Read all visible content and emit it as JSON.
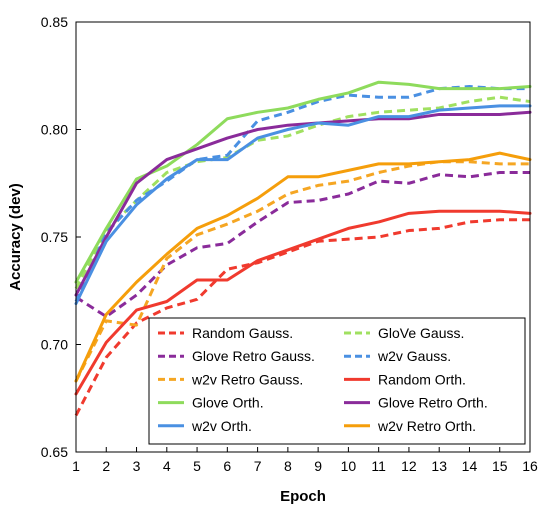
{
  "chart_data": {
    "type": "line",
    "xlabel": "Epoch",
    "ylabel": "Accuracy (dev)",
    "x": [
      1,
      2,
      3,
      4,
      5,
      6,
      7,
      8,
      9,
      10,
      11,
      12,
      13,
      14,
      15,
      16
    ],
    "xlim": [
      1,
      16
    ],
    "ylim": [
      0.65,
      0.85
    ],
    "x_ticks": [
      "1",
      "2",
      "3",
      "4",
      "5",
      "6",
      "7",
      "8",
      "9",
      "10",
      "11",
      "12",
      "13",
      "14",
      "15",
      "16"
    ],
    "y_ticks": [
      "0.65",
      "0.70",
      "0.75",
      "0.80",
      "0.85"
    ],
    "grid": false,
    "legend_position": "bottom-right",
    "series": [
      {
        "name": "Random Gauss.",
        "color": "#F03A2E",
        "dashed": true,
        "values": [
          0.667,
          0.694,
          0.71,
          0.717,
          0.721,
          0.735,
          0.738,
          0.743,
          0.748,
          0.749,
          0.75,
          0.753,
          0.754,
          0.757,
          0.758,
          0.758
        ]
      },
      {
        "name": "GloVe Gauss.",
        "color": "#A0E060",
        "dashed": true,
        "values": [
          0.726,
          0.753,
          0.767,
          0.78,
          0.785,
          0.787,
          0.795,
          0.797,
          0.802,
          0.806,
          0.808,
          0.809,
          0.81,
          0.813,
          0.815,
          0.813
        ]
      },
      {
        "name": "Glove Retro Gauss.",
        "color": "#8A2B9A",
        "dashed": true,
        "values": [
          0.722,
          0.713,
          0.723,
          0.737,
          0.745,
          0.747,
          0.757,
          0.766,
          0.767,
          0.77,
          0.776,
          0.775,
          0.779,
          0.778,
          0.78,
          0.78
        ]
      },
      {
        "name": "w2v Gauss.",
        "color": "#4A90E2",
        "dashed": true,
        "values": [
          0.72,
          0.752,
          0.767,
          0.776,
          0.786,
          0.788,
          0.804,
          0.808,
          0.813,
          0.816,
          0.815,
          0.815,
          0.819,
          0.82,
          0.819,
          0.819
        ]
      },
      {
        "name": "w2v Retro Gauss.",
        "color": "#F5A623",
        "dashed": true,
        "values": [
          0.683,
          0.711,
          0.709,
          0.74,
          0.751,
          0.756,
          0.762,
          0.77,
          0.774,
          0.776,
          0.78,
          0.783,
          0.785,
          0.785,
          0.784,
          0.784
        ]
      },
      {
        "name": "Random Orth.",
        "color": "#F03A2E",
        "dashed": false,
        "values": [
          0.677,
          0.701,
          0.716,
          0.72,
          0.73,
          0.73,
          0.739,
          0.744,
          0.749,
          0.754,
          0.757,
          0.761,
          0.762,
          0.762,
          0.762,
          0.761
        ]
      },
      {
        "name": "Glove Orth.",
        "color": "#8EDB5C",
        "dashed": false,
        "values": [
          0.729,
          0.754,
          0.777,
          0.783,
          0.793,
          0.805,
          0.808,
          0.81,
          0.814,
          0.817,
          0.822,
          0.821,
          0.819,
          0.819,
          0.819,
          0.82
        ]
      },
      {
        "name": "Glove Retro Orth.",
        "color": "#8A2B9A",
        "dashed": false,
        "values": [
          0.723,
          0.75,
          0.775,
          0.786,
          0.791,
          0.796,
          0.8,
          0.802,
          0.803,
          0.804,
          0.805,
          0.805,
          0.807,
          0.807,
          0.807,
          0.808
        ]
      },
      {
        "name": "w2v Orth.",
        "color": "#4A90E2",
        "dashed": false,
        "values": [
          0.719,
          0.748,
          0.765,
          0.777,
          0.786,
          0.786,
          0.796,
          0.8,
          0.803,
          0.802,
          0.806,
          0.806,
          0.809,
          0.81,
          0.811,
          0.811
        ]
      },
      {
        "name": "w2v Retro Orth.",
        "color": "#F59E0B",
        "dashed": false,
        "values": [
          0.683,
          0.714,
          0.729,
          0.742,
          0.754,
          0.76,
          0.768,
          0.778,
          0.778,
          0.781,
          0.784,
          0.784,
          0.785,
          0.786,
          0.789,
          0.786
        ]
      }
    ]
  }
}
